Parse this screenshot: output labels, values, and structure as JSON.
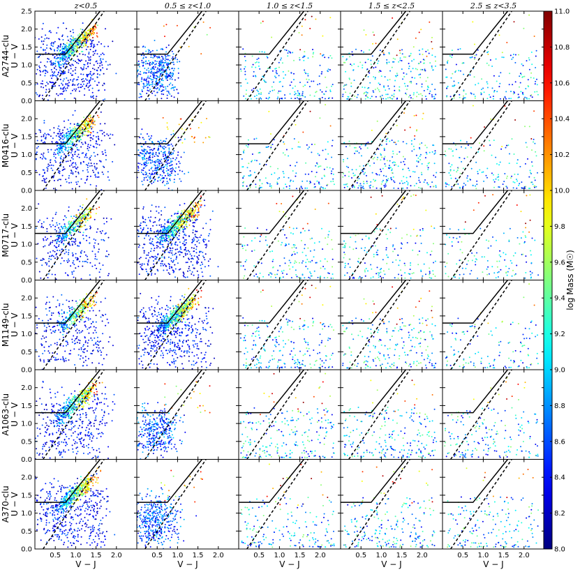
{
  "chart_data": {
    "type": "scatter",
    "description_free": true,
    "columns": [
      "z<0.5",
      "0.5 ≤ z<1.0",
      "1.0 ≤ z<1.5",
      "1.5 ≤ z<2.5",
      "2.5 ≤ z<3.5"
    ],
    "rows": [
      "A2744-clu",
      "M0416-clu",
      "M0717-clu",
      "M1149-clu",
      "A1063-clu",
      "A370-clu"
    ],
    "xlabel": "V − J",
    "ylabel": "U − V",
    "xlim": [
      0.0,
      2.5
    ],
    "ylim": [
      0.0,
      2.5
    ],
    "xticks": [
      "0.5",
      "1.0",
      "1.5",
      "2.0"
    ],
    "yticks": [
      "0.0",
      "0.5",
      "1.0",
      "1.5",
      "2.0",
      "2.5"
    ],
    "colorbar": {
      "label": "log Mass (M☉)",
      "range": [
        8.0,
        11.0
      ],
      "ticks": [
        "8.0",
        "8.2",
        "8.4",
        "8.6",
        "8.8",
        "9.0",
        "9.2",
        "9.4",
        "9.6",
        "9.8",
        "10.0",
        "10.2",
        "10.4",
        "10.6",
        "10.8",
        "11.0"
      ],
      "colormap": "jet"
    },
    "selection_line": [
      [
        0.0,
        1.3
      ],
      [
        0.75,
        1.3
      ],
      [
        1.6,
        2.5
      ]
    ],
    "dashed_line": [
      [
        0.2,
        0.0
      ],
      [
        1.7,
        2.5
      ]
    ],
    "grid": false,
    "panel_density": [
      [
        1.0,
        0.45,
        0.25,
        0.3,
        0.2
      ],
      [
        0.8,
        0.45,
        0.2,
        0.3,
        0.2
      ],
      [
        0.6,
        1.0,
        0.2,
        0.2,
        0.15
      ],
      [
        0.6,
        1.0,
        0.25,
        0.25,
        0.15
      ],
      [
        0.8,
        0.4,
        0.25,
        0.25,
        0.2
      ],
      [
        0.9,
        0.45,
        0.2,
        0.25,
        0.2
      ]
    ]
  }
}
